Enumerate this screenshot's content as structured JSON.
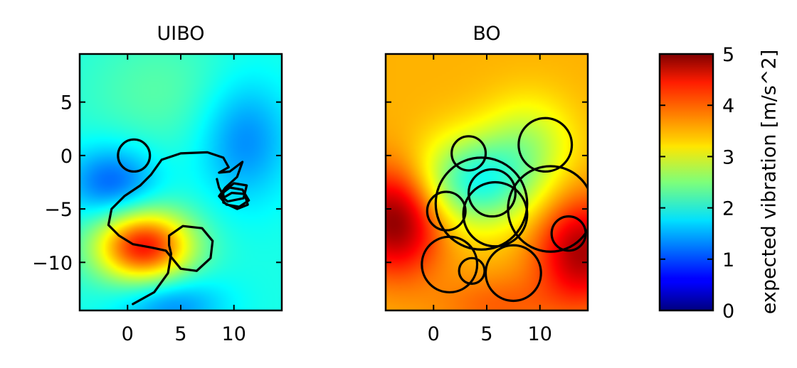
{
  "chart_data": [
    {
      "type": "heatmap",
      "title": "UIBO",
      "xlim": [
        -4.5,
        14.5
      ],
      "ylim": [
        -14.5,
        9.5
      ],
      "xticks": [
        0,
        5,
        10
      ],
      "yticks": [
        5,
        0,
        -5,
        -10
      ],
      "xtick_labels": [
        "0",
        "5",
        "10"
      ],
      "ytick_labels": [
        "5",
        "0",
        "−5",
        "−10"
      ],
      "field_bumps": [
        {
          "x": 1.5,
          "y": -8.5,
          "amp": 2.3,
          "sx": 3.2,
          "sy": 2.4
        },
        {
          "x": -1.5,
          "y": -2.5,
          "amp": -0.9,
          "sx": 3.0,
          "sy": 2.4
        },
        {
          "x": 11.0,
          "y": 1.5,
          "amp": -0.7,
          "sx": 3.0,
          "sy": 4.0
        },
        {
          "x": 4.0,
          "y": -14.0,
          "amp": -0.7,
          "sx": 3.5,
          "sy": 2.0
        },
        {
          "x": 3.0,
          "y": 6.0,
          "amp": 0.3,
          "sx": 5.0,
          "sy": 4.0
        }
      ],
      "field_base": 2.0,
      "trajectory": [
        [
          0.5,
          -13.9
        ],
        [
          2.5,
          -12.8
        ],
        [
          3.8,
          -11.0
        ],
        [
          4.1,
          -9.2
        ],
        [
          3.9,
          -8.4
        ],
        [
          3.9,
          -7.5
        ],
        [
          5.2,
          -6.6
        ],
        [
          7.0,
          -6.8
        ],
        [
          8.0,
          -8.0
        ],
        [
          7.8,
          -9.6
        ],
        [
          6.5,
          -10.8
        ],
        [
          5.0,
          -10.6
        ],
        [
          4.1,
          -9.5
        ],
        [
          3.6,
          -8.9
        ],
        [
          2.2,
          -8.6
        ],
        [
          0.5,
          -8.3
        ],
        [
          -0.8,
          -7.5
        ],
        [
          -1.8,
          -6.5
        ],
        [
          -1.5,
          -5.0
        ],
        [
          -0.3,
          -3.8
        ],
        [
          1.2,
          -2.8
        ],
        [
          2.2,
          -1.8
        ],
        [
          3.2,
          -0.4
        ],
        [
          5.0,
          0.2
        ],
        [
          7.5,
          0.3
        ],
        [
          9.0,
          -0.2
        ],
        [
          9.5,
          -1.1
        ],
        [
          8.6,
          -1.6
        ],
        [
          9.6,
          -1.5
        ],
        [
          10.8,
          -0.6
        ],
        [
          10.3,
          -2.0
        ],
        [
          9.2,
          -3.0
        ],
        [
          8.6,
          -3.8
        ],
        [
          9.3,
          -4.6
        ],
        [
          10.5,
          -4.8
        ],
        [
          11.4,
          -4.2
        ],
        [
          10.8,
          -3.2
        ],
        [
          9.6,
          -3.0
        ],
        [
          8.7,
          -3.7
        ],
        [
          9.4,
          -4.3
        ],
        [
          10.9,
          -4.0
        ],
        [
          11.2,
          -2.8
        ],
        [
          10.0,
          -2.6
        ],
        [
          9.0,
          -3.4
        ],
        [
          9.0,
          -4.4
        ],
        [
          10.3,
          -5.0
        ],
        [
          11.3,
          -4.6
        ],
        [
          11.0,
          -3.6
        ],
        [
          9.8,
          -3.5
        ],
        [
          9.1,
          -3.9
        ],
        [
          8.6,
          -3.0
        ],
        [
          8.4,
          -2.2
        ]
      ],
      "loop": {
        "x": 0.6,
        "y": 0.0,
        "r": 1.5
      }
    },
    {
      "type": "heatmap",
      "title": "BO",
      "xlim": [
        -4.5,
        14.5
      ],
      "ylim": [
        -14.5,
        9.5
      ],
      "xticks": [
        0,
        5,
        10
      ],
      "xtick_labels": [
        "0",
        "5",
        "10"
      ],
      "field_bumps": [
        {
          "x": -3.5,
          "y": -6.0,
          "amp": 1.5,
          "sx": 3.0,
          "sy": 3.5
        },
        {
          "x": 14.0,
          "y": -9.0,
          "amp": 1.3,
          "sx": 3.0,
          "sy": 3.5
        },
        {
          "x": 4.0,
          "y": -2.5,
          "amp": -1.5,
          "sx": 4.0,
          "sy": 3.0
        },
        {
          "x": 9.0,
          "y": 1.5,
          "amp": -0.6,
          "sx": 3.0,
          "sy": 3.0
        },
        {
          "x": 6.0,
          "y": -14.0,
          "amp": 0.4,
          "sx": 4.0,
          "sy": 2.0
        }
      ],
      "field_base": 3.5,
      "loops": [
        {
          "x": 1.5,
          "y": -10.2,
          "r": 2.6
        },
        {
          "x": 3.6,
          "y": -10.8,
          "r": 1.2
        },
        {
          "x": 7.5,
          "y": -11.0,
          "r": 2.6
        },
        {
          "x": 4.5,
          "y": -4.5,
          "r": 4.3
        },
        {
          "x": 5.5,
          "y": -3.5,
          "r": 2.2
        },
        {
          "x": 11.0,
          "y": -5.0,
          "r": 4.0
        },
        {
          "x": 12.7,
          "y": -7.3,
          "r": 1.6
        },
        {
          "x": 10.5,
          "y": 1.0,
          "r": 2.5
        },
        {
          "x": 3.3,
          "y": 0.2,
          "r": 1.6
        },
        {
          "x": 5.8,
          "y": -5.5,
          "r": 3.0
        },
        {
          "x": 1.2,
          "y": -5.2,
          "r": 1.8
        }
      ]
    }
  ],
  "colorbar": {
    "label": "expected vibration [m/s^2]",
    "range": [
      0,
      5
    ],
    "ticks": [
      "0",
      "1",
      "2",
      "3",
      "4",
      "5"
    ],
    "colormap": "jet"
  }
}
